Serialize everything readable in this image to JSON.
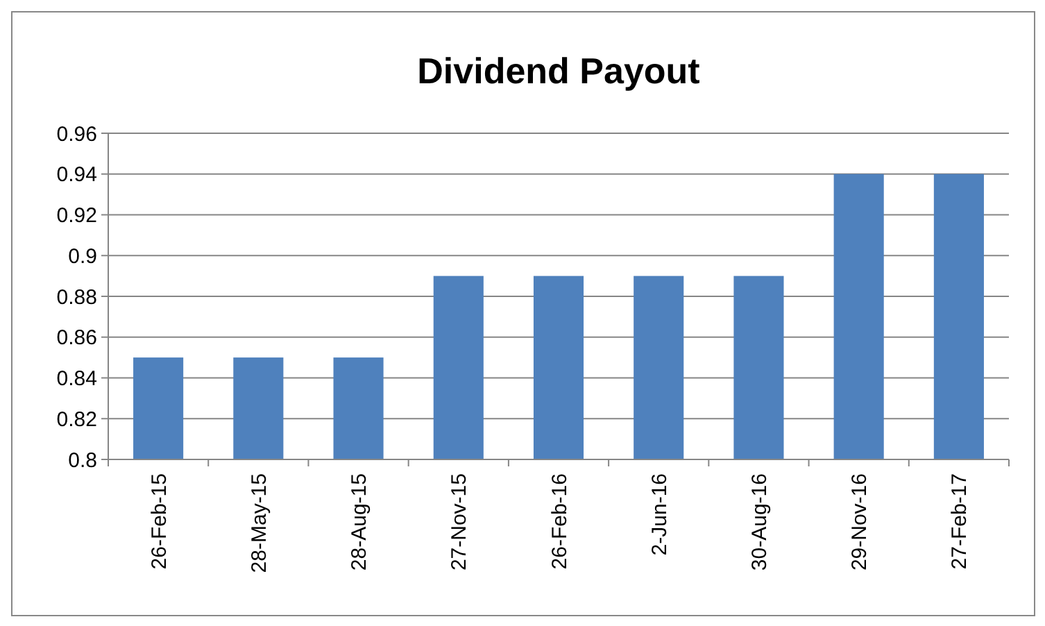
{
  "chart_data": {
    "type": "bar",
    "title": "Dividend Payout",
    "categories": [
      "26-Feb-15",
      "28-May-15",
      "28-Aug-15",
      "27-Nov-15",
      "26-Feb-16",
      "2-Jun-16",
      "30-Aug-16",
      "29-Nov-16",
      "27-Feb-17"
    ],
    "values": [
      0.85,
      0.85,
      0.85,
      0.89,
      0.89,
      0.89,
      0.89,
      0.94,
      0.94
    ],
    "color": "#4f81bd",
    "ylim": [
      0.8,
      0.96
    ],
    "yticks": [
      0.8,
      0.82,
      0.84,
      0.86,
      0.88,
      0.9,
      0.92,
      0.94,
      0.96
    ],
    "grid": true
  }
}
